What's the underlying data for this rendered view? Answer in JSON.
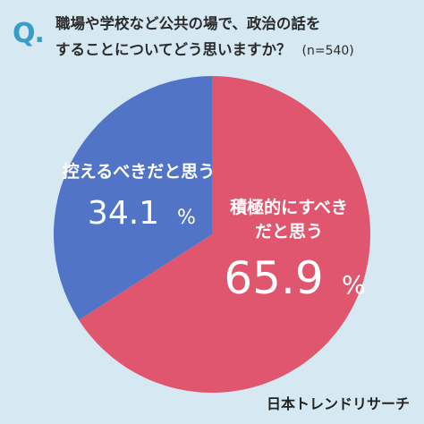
{
  "question": {
    "mark": "Q.",
    "line1": "職場や学校など公共の場で、政治の話を",
    "line2": "することについてどう思いますか？",
    "n": "(n=540)"
  },
  "chart_data": {
    "type": "pie",
    "series": [
      {
        "name": "控えるべきだと思う",
        "value": 34.1,
        "label": "34.1%",
        "color": "#5274c6"
      },
      {
        "name": "積極的にすべきだと思う",
        "value": 65.9,
        "label": "65.9%",
        "color": "#e0566f"
      }
    ],
    "start_angle_deg": 0,
    "direction": "clockwise"
  },
  "labels": {
    "restrain_line1": "控えるべきだと思う",
    "restrain_pct_num": "34.1",
    "restrain_pct_unit": "%",
    "active_line1": "積極的にすべき",
    "active_line2": "だと思う",
    "active_pct_num": "65.9",
    "active_pct_unit": "%"
  },
  "brand": "日本トレンドリサーチ"
}
